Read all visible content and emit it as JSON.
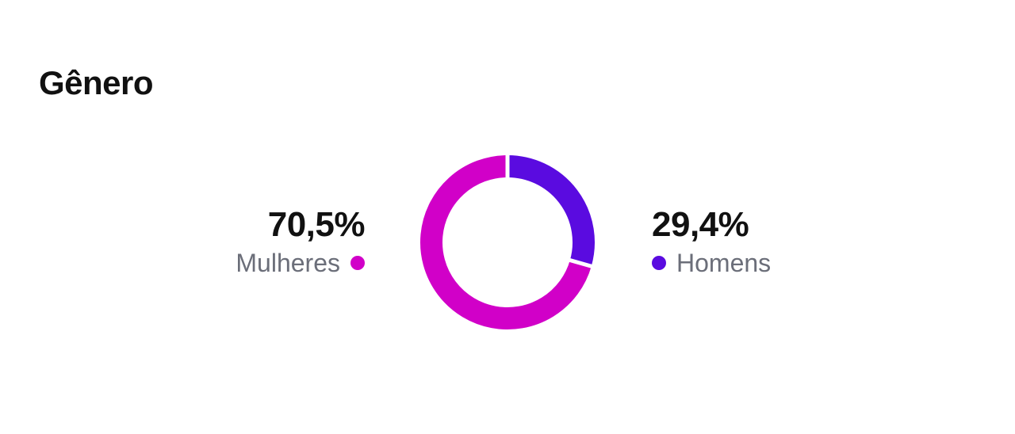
{
  "title": "Gênero",
  "colors": {
    "women": "#d100c8",
    "men": "#5a0be0"
  },
  "chart_data": {
    "type": "pie",
    "title": "Gênero",
    "series": [
      {
        "name": "Mulheres",
        "value": 70.5,
        "label": "70,5%",
        "color": "#d100c8"
      },
      {
        "name": "Homens",
        "value": 29.4,
        "label": "29,4%",
        "color": "#5a0be0"
      }
    ]
  }
}
